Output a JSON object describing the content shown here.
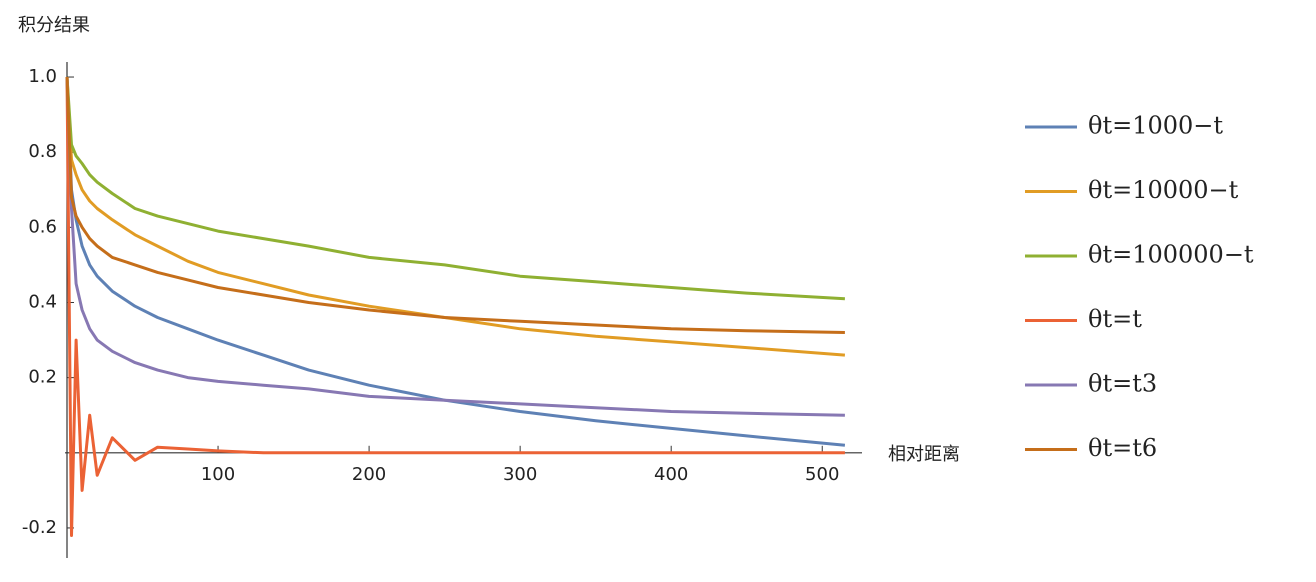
{
  "chart_data": {
    "type": "line",
    "y_label": "积分结果",
    "x_label": "相对距离",
    "x": [
      0,
      3,
      6,
      10,
      15,
      20,
      30,
      45,
      60,
      80,
      100,
      130,
      160,
      200,
      250,
      300,
      350,
      400,
      450,
      515
    ],
    "xlim": [
      0,
      525
    ],
    "ylim": [
      -0.28,
      1.04
    ],
    "xticks": [
      100,
      200,
      300,
      400,
      500
    ],
    "yticks": [
      -0.2,
      0.2,
      0.4,
      0.6,
      0.8,
      {
        "value": 1,
        "label": "1.0"
      }
    ],
    "series": [
      {
        "name": "θt=1000−t",
        "color": "#5e81b5",
        "values": [
          1,
          0.7,
          0.62,
          0.55,
          0.5,
          0.47,
          0.43,
          0.39,
          0.36,
          0.33,
          0.3,
          0.26,
          0.22,
          0.18,
          0.14,
          0.11,
          0.085,
          0.065,
          0.045,
          0.02
        ]
      },
      {
        "name": "θt=10000−t",
        "color": "#e19c24",
        "values": [
          1,
          0.78,
          0.74,
          0.7,
          0.67,
          0.65,
          0.62,
          0.58,
          0.55,
          0.51,
          0.48,
          0.45,
          0.42,
          0.39,
          0.36,
          0.33,
          0.31,
          0.295,
          0.28,
          0.26
        ]
      },
      {
        "name": "θt=100000−t",
        "color": "#8fb032",
        "values": [
          1,
          0.82,
          0.79,
          0.77,
          0.74,
          0.72,
          0.69,
          0.65,
          0.63,
          0.61,
          0.59,
          0.57,
          0.55,
          0.52,
          0.5,
          0.47,
          0.455,
          0.44,
          0.425,
          0.41
        ]
      },
      {
        "name": "θt=t",
        "color": "#eb6235",
        "values": [
          1,
          -0.22,
          0.3,
          -0.1,
          0.1,
          -0.06,
          0.04,
          -0.02,
          0.015,
          0.01,
          0.005,
          0,
          0,
          0,
          0,
          0,
          0,
          0,
          0,
          0
        ]
      },
      {
        "name": "θt=t3",
        "color": "#8778b3",
        "values": [
          1,
          0.65,
          0.45,
          0.38,
          0.33,
          0.3,
          0.27,
          0.24,
          0.22,
          0.2,
          0.19,
          0.18,
          0.17,
          0.15,
          0.14,
          0.13,
          0.12,
          0.11,
          0.105,
          0.1
        ]
      },
      {
        "name": "θt=t6",
        "color": "#c56e1a",
        "values": [
          1,
          0.68,
          0.63,
          0.6,
          0.57,
          0.55,
          0.52,
          0.5,
          0.48,
          0.46,
          0.44,
          0.42,
          0.4,
          0.38,
          0.36,
          0.35,
          0.34,
          0.33,
          0.325,
          0.32
        ]
      }
    ],
    "legend": "right"
  }
}
